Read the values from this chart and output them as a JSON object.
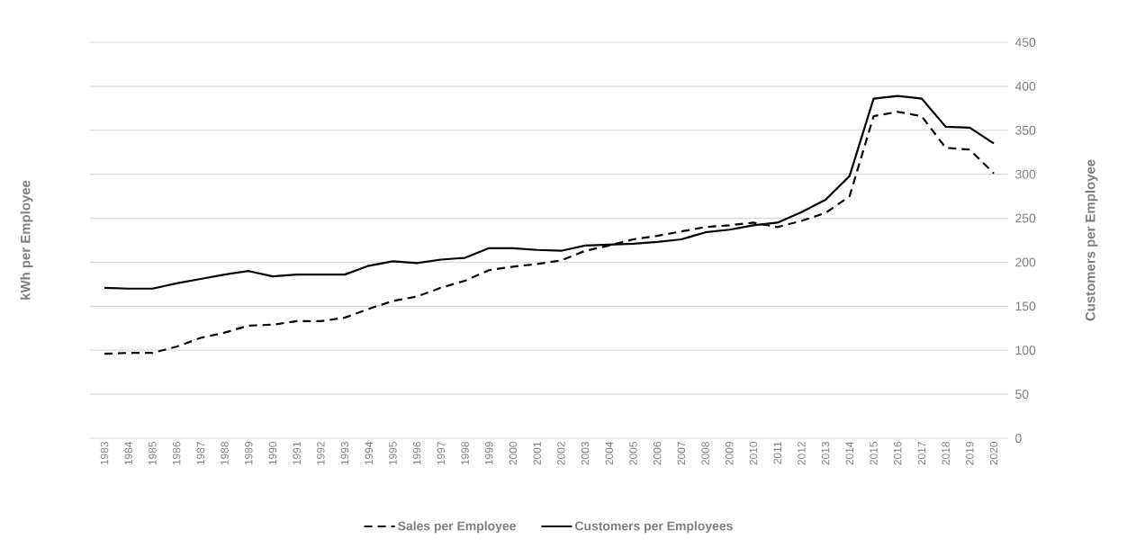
{
  "chart_data": {
    "type": "line",
    "ylabel": "kWh per Employee",
    "y2label": "Customers per Employee",
    "categories": [
      "1983",
      "1984",
      "1985",
      "1986",
      "1987",
      "1988",
      "1989",
      "1990",
      "1991",
      "1992",
      "1993",
      "1994",
      "1995",
      "1996",
      "1997",
      "1998",
      "1999",
      "2000",
      "2001",
      "2002",
      "2003",
      "2004",
      "2005",
      "2006",
      "2007",
      "2008",
      "2009",
      "2010",
      "2011",
      "2012",
      "2013",
      "2014",
      "2015",
      "2016",
      "2017",
      "2018",
      "2019",
      "2020"
    ],
    "series": [
      {
        "name": "Sales per Employee",
        "color": "#000000",
        "line_style": "dashed",
        "values": [
          96,
          97,
          97,
          104,
          114,
          120,
          128,
          129,
          133,
          133,
          137,
          147,
          156,
          161,
          171,
          179,
          191,
          195,
          198,
          202,
          213,
          219,
          226,
          230,
          235,
          240,
          242,
          245,
          240,
          247,
          256,
          275,
          366,
          371,
          366,
          330,
          328,
          301
        ]
      },
      {
        "name": "Customers per Employees",
        "color": "#000000",
        "line_style": "solid",
        "values": [
          171,
          170,
          170,
          176,
          181,
          186,
          190,
          184,
          186,
          186,
          186,
          196,
          201,
          199,
          203,
          205,
          216,
          216,
          214,
          213,
          219,
          220,
          221,
          223,
          226,
          234,
          237,
          242,
          245,
          257,
          271,
          298,
          386,
          389,
          386,
          354,
          353,
          335
        ]
      }
    ],
    "ylim": [
      0,
      450
    ],
    "yticks": [
      0,
      50,
      100,
      150,
      200,
      250,
      300,
      350,
      400,
      450
    ],
    "grid": "y",
    "legend": "bottom",
    "marker": "none"
  }
}
